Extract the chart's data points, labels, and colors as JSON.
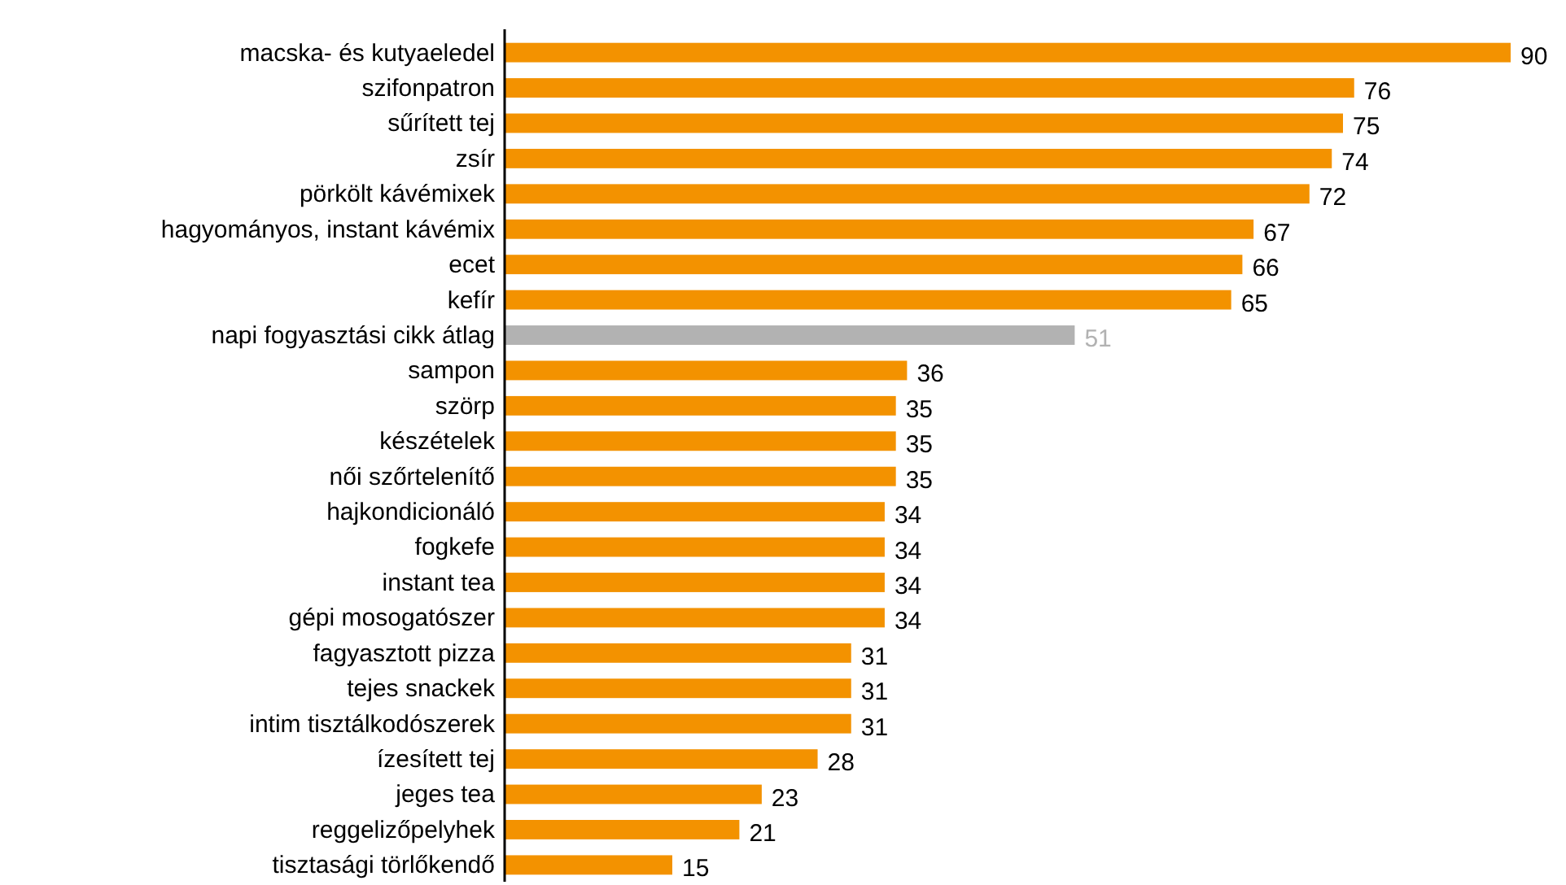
{
  "chart_data": {
    "type": "bar",
    "orientation": "horizontal",
    "data_labels": true,
    "categories": [
      "macska- és kutyaeledel",
      "szifonpatron",
      "sűrített tej",
      "zsír",
      "pörkölt kávémixek",
      "hagyományos, instant kávémix",
      "ecet",
      "kefír",
      "napi fogyasztási cikk átlag",
      "sampon",
      "szörp",
      "készételek",
      "női szőrtelenítő",
      "hajkondicionáló",
      "fogkefe",
      "instant tea",
      "gépi mosogatószer",
      "fagyasztott pizza",
      "tejes snackek",
      "intim tisztálkodószerek",
      "ízesített tej",
      "jeges tea",
      "reggelizőpelyhek",
      "tisztasági törlőkendő"
    ],
    "values": [
      90,
      76,
      75,
      74,
      72,
      67,
      66,
      65,
      51,
      36,
      35,
      35,
      35,
      34,
      34,
      34,
      34,
      31,
      31,
      31,
      28,
      23,
      21,
      15
    ],
    "colors": [
      "#f39200",
      "#f39200",
      "#f39200",
      "#f39200",
      "#f39200",
      "#f39200",
      "#f39200",
      "#f39200",
      "#b2b2b2",
      "#f39200",
      "#f39200",
      "#f39200",
      "#f39200",
      "#f39200",
      "#f39200",
      "#f39200",
      "#f39200",
      "#f39200",
      "#f39200",
      "#f39200",
      "#f39200",
      "#f39200",
      "#f39200",
      "#f39200"
    ]
  }
}
